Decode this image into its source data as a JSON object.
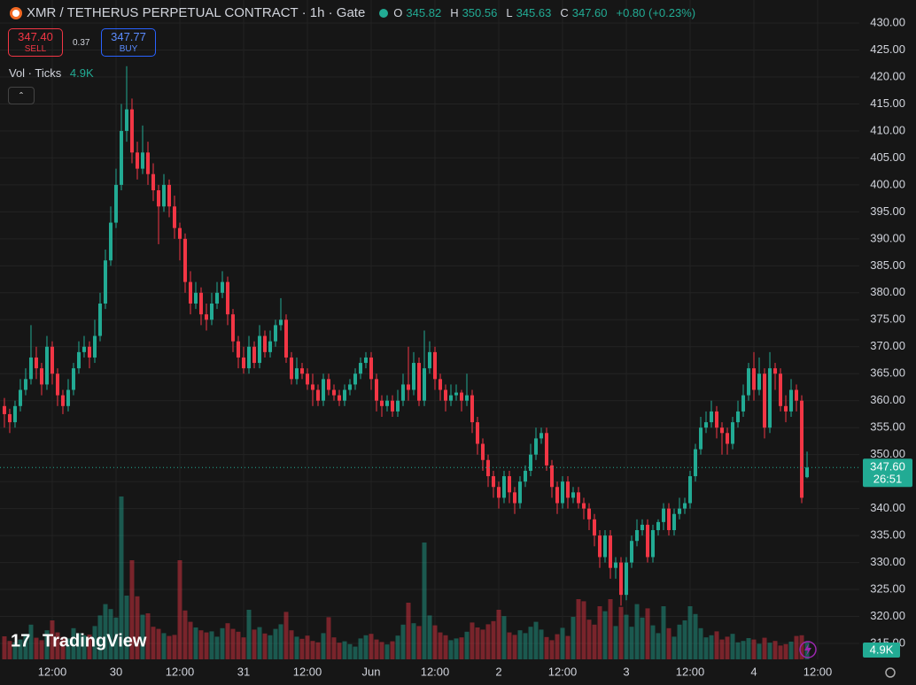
{
  "chart_data": {
    "type": "candlestick",
    "title": "XMR / TETHERUS PERPETUAL CONTRACT · 1h · Gate",
    "ohlc_letters": [
      "O",
      "H",
      "L",
      "C"
    ],
    "change_label": "+0.80 (+0.23%)",
    "up_color": "#22ab94",
    "down_color": "#f23645",
    "open": [
      359,
      357.5,
      356,
      359,
      362,
      364,
      368,
      366,
      363,
      370,
      365,
      361,
      359,
      362,
      366,
      369,
      370,
      368,
      372,
      378,
      386,
      393,
      400,
      410,
      414,
      406,
      403,
      406,
      402,
      399,
      396,
      400,
      396,
      392,
      390,
      382,
      378,
      380,
      376,
      375,
      378,
      380,
      382,
      376,
      371,
      368,
      366,
      370,
      367,
      372,
      369,
      371,
      374,
      375,
      368,
      364,
      366,
      365,
      363,
      362,
      360,
      364,
      362,
      361,
      360,
      362,
      363,
      365,
      367,
      368,
      364,
      360,
      359,
      360,
      358,
      360,
      363,
      362,
      367,
      360,
      366,
      369,
      364,
      362,
      360,
      361,
      361.5,
      360,
      361,
      356,
      352,
      349,
      346,
      344,
      342,
      346,
      343,
      341,
      345,
      347,
      350,
      353,
      354,
      348,
      344,
      341,
      345,
      342,
      343,
      341,
      340,
      338,
      335,
      331,
      335,
      329,
      330,
      324,
      330,
      334,
      336,
      337,
      331,
      336,
      337.5,
      340,
      336,
      339,
      340,
      341,
      346,
      351,
      355,
      356,
      358,
      355,
      354,
      352,
      356,
      358,
      361,
      366,
      362,
      365,
      355,
      366,
      365,
      359,
      358,
      362,
      360,
      345.82
    ],
    "high": [
      360.5,
      358.5,
      360,
      364,
      366,
      374,
      370,
      367,
      372,
      371,
      366,
      362,
      364,
      367,
      371,
      372,
      371,
      375,
      380,
      388,
      396,
      403,
      415,
      422,
      416,
      408,
      411,
      408,
      404,
      400,
      402,
      401,
      398,
      393,
      391,
      384,
      382,
      381,
      378,
      380,
      382,
      384,
      383,
      377,
      372,
      370,
      372,
      371,
      374,
      373,
      373,
      375,
      379,
      376,
      369,
      368,
      367,
      366,
      365,
      363,
      365,
      365,
      363,
      362,
      363,
      364,
      366,
      368,
      369,
      369,
      365,
      361,
      361,
      361,
      362,
      365,
      370,
      369,
      368,
      373,
      371,
      370,
      365,
      363,
      363,
      363,
      362,
      365,
      362,
      357,
      353,
      350,
      347,
      345,
      347,
      347,
      344,
      346,
      348,
      352,
      355,
      355,
      355,
      349,
      345,
      346,
      346,
      344,
      344,
      342,
      341,
      339,
      336,
      336,
      336,
      331,
      331,
      331,
      335,
      338,
      338,
      338,
      337,
      338,
      341,
      341,
      340,
      342,
      342,
      347,
      352,
      357,
      358,
      360,
      359,
      356,
      355,
      357,
      360,
      363,
      367,
      369,
      368,
      366,
      369,
      367,
      366,
      361,
      364,
      363,
      361,
      350.56
    ],
    "low": [
      355,
      354,
      355,
      358,
      361,
      363,
      364,
      361,
      362,
      363,
      359,
      357.5,
      358,
      361,
      365,
      368,
      366,
      367,
      371,
      377,
      385,
      392,
      399,
      408,
      404,
      401,
      402,
      400,
      397,
      389,
      395,
      394,
      390,
      386,
      380,
      376,
      377,
      374,
      373,
      374,
      377,
      379,
      374,
      369,
      366,
      365,
      365,
      366,
      366,
      368,
      368,
      370,
      373,
      367,
      363,
      363,
      364,
      362,
      359,
      359,
      359,
      361,
      360,
      359,
      359,
      361,
      362,
      364,
      366,
      362,
      358,
      357,
      358,
      357,
      357,
      359,
      360,
      361,
      359,
      359,
      365,
      362,
      360,
      358,
      359,
      360,
      358,
      359,
      354,
      350,
      347,
      344,
      342,
      340,
      341,
      341,
      339,
      340,
      344,
      346,
      349,
      352,
      347,
      342,
      339,
      340,
      340,
      341,
      340,
      338,
      336,
      333,
      329,
      330,
      327,
      327,
      322,
      323,
      329,
      333,
      335,
      330,
      330,
      335,
      336,
      335,
      335,
      338,
      339,
      340,
      345,
      350,
      354,
      355,
      353,
      350,
      350,
      351,
      355,
      357,
      360,
      360,
      361,
      353,
      354,
      362,
      358,
      356,
      357,
      358,
      341,
      345.63
    ],
    "close": [
      357.5,
      356,
      359,
      362,
      364,
      368,
      366,
      363,
      370,
      365,
      361,
      359,
      362,
      366,
      369,
      370,
      368,
      372,
      378,
      386,
      393,
      400,
      410,
      414,
      406,
      403,
      406,
      402,
      399,
      396,
      400,
      396,
      392,
      390,
      382,
      378,
      380,
      376,
      375,
      378,
      380,
      382,
      376,
      371,
      368,
      366,
      370,
      367,
      372,
      369,
      371,
      374,
      375,
      368,
      364,
      366,
      365,
      363,
      362,
      360,
      364,
      362,
      361,
      360,
      362,
      363,
      365,
      367,
      368,
      364,
      360,
      359,
      360,
      358,
      360,
      363,
      362,
      367,
      360,
      366,
      369,
      364,
      362,
      360,
      361,
      361.5,
      360,
      361,
      356,
      352,
      349,
      346,
      344,
      342,
      346,
      343,
      341,
      345,
      347,
      350,
      353,
      354,
      348,
      344,
      341,
      345,
      342,
      343,
      341,
      340,
      338,
      335,
      331,
      335,
      329,
      330,
      324,
      330,
      334,
      336,
      337,
      331,
      336,
      337.5,
      340,
      336,
      339,
      340,
      341,
      346,
      351,
      355,
      356,
      358,
      355,
      354,
      352,
      356,
      358,
      361,
      366,
      362,
      365,
      355,
      366,
      365,
      359,
      358,
      362,
      360,
      342,
      347.6
    ],
    "last_price": {
      "value": 347.6,
      "label": "347.60"
    },
    "countdown": "26:51",
    "xlim": [
      -0.83,
      160.83
    ],
    "xticks": [
      {
        "value": 9,
        "label": "12:00"
      },
      {
        "value": 21,
        "label": "30"
      },
      {
        "value": 33,
        "label": "12:00"
      },
      {
        "value": 45,
        "label": "31"
      },
      {
        "value": 57,
        "label": "12:00"
      },
      {
        "value": 69,
        "label": "Jun"
      },
      {
        "value": 81,
        "label": "12:00"
      },
      {
        "value": 93,
        "label": "2"
      },
      {
        "value": 105,
        "label": "12:00"
      },
      {
        "value": 117,
        "label": "3"
      },
      {
        "value": 129,
        "label": "12:00"
      },
      {
        "value": 141,
        "label": "4"
      },
      {
        "value": 153,
        "label": "12:00"
      }
    ],
    "ylim": [
      312.05,
      434.27
    ],
    "yticks": [
      {
        "value": 430,
        "label": "430.00"
      },
      {
        "value": 425,
        "label": "425.00"
      },
      {
        "value": 420,
        "label": "420.00"
      },
      {
        "value": 415,
        "label": "415.00"
      },
      {
        "value": 410,
        "label": "410.00"
      },
      {
        "value": 405,
        "label": "405.00"
      },
      {
        "value": 400,
        "label": "400.00"
      },
      {
        "value": 395,
        "label": "395.00"
      },
      {
        "value": 390,
        "label": "390.00"
      },
      {
        "value": 385,
        "label": "385.00"
      },
      {
        "value": 380,
        "label": "380.00"
      },
      {
        "value": 375,
        "label": "375.00"
      },
      {
        "value": 370,
        "label": "370.00"
      },
      {
        "value": 365,
        "label": "365.00"
      },
      {
        "value": 360,
        "label": "360.00"
      },
      {
        "value": 355,
        "label": "355.00"
      },
      {
        "value": 350,
        "label": "350.00"
      },
      {
        "value": 345,
        "label": "345.00"
      },
      {
        "value": 340,
        "label": "340.00"
      },
      {
        "value": 335,
        "label": "335.00"
      },
      {
        "value": 330,
        "label": "330.00"
      },
      {
        "value": 325,
        "label": "325.00"
      },
      {
        "value": 320,
        "label": "320.00"
      },
      {
        "value": 315,
        "label": "315.00"
      }
    ],
    "grid": true,
    "volume": {
      "name": "Vol · Ticks",
      "last_label": "4.9K",
      "ylim": [
        0,
        50000
      ],
      "values": [
        6500,
        5200,
        4800,
        5600,
        7200,
        9800,
        6100,
        5400,
        8200,
        11000,
        7600,
        6300,
        5900,
        8800,
        7400,
        6800,
        7000,
        9400,
        12400,
        15600,
        14200,
        11800,
        46000,
        18000,
        28000,
        17800,
        12600,
        13000,
        9200,
        8600,
        7400,
        6600,
        6900,
        28000,
        13800,
        10600,
        9000,
        8200,
        7600,
        7900,
        6400,
        8800,
        10200,
        8600,
        7800,
        6200,
        14000,
        8400,
        9100,
        7300,
        6800,
        8600,
        9900,
        13400,
        8200,
        6400,
        5800,
        6700,
        5200,
        4800,
        7400,
        11900,
        6200,
        4700,
        5100,
        4300,
        3600,
        5900,
        6800,
        7200,
        5600,
        4900,
        4200,
        5100,
        6700,
        9800,
        16000,
        10200,
        9400,
        33000,
        12400,
        9600,
        7600,
        6800,
        5400,
        5900,
        6200,
        7800,
        10400,
        9000,
        8400,
        9900,
        10800,
        14000,
        12200,
        7600,
        6900,
        8200,
        7400,
        9200,
        10600,
        8400,
        6300,
        5400,
        7100,
        8900,
        6600,
        12000,
        17000,
        16400,
        11200,
        9800,
        15000,
        13600,
        17000,
        9400,
        14800,
        12600,
        9200,
        15600,
        11800,
        14400,
        9600,
        7400,
        15000,
        8800,
        6400,
        9800,
        11000,
        15000,
        12800,
        8800,
        6200,
        6800,
        7900,
        5600,
        6400,
        7200,
        4800,
        5200,
        6000,
        5600,
        4400,
        6100,
        4700,
        5200,
        3900,
        4300,
        5000,
        6600,
        6800,
        4900
      ]
    }
  },
  "order_panel": {
    "sell": {
      "price": "347.40",
      "label": "SELL"
    },
    "spread": "0.37",
    "buy": {
      "price": "347.77",
      "label": "BUY"
    }
  },
  "branding": "TradingView"
}
